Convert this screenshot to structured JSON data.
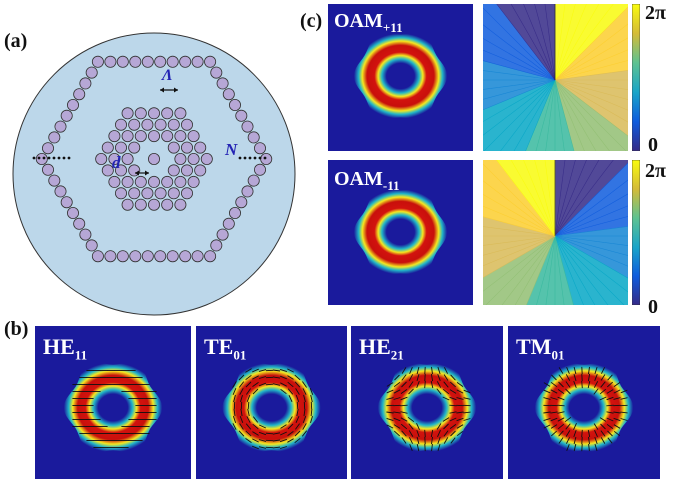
{
  "panels": {
    "a": {
      "label": "(a)",
      "annotations": {
        "pitch": "Λ",
        "diameter": "d",
        "rings": "N"
      },
      "colors": {
        "background": "#bcd7ea",
        "hole": "#b6a7d6",
        "hole_stroke": "#333333",
        "annotation": "#2323b4"
      }
    },
    "b": {
      "label": "(b)",
      "modes": [
        {
          "name": "HE",
          "sub": "11"
        },
        {
          "name": "TE",
          "sub": "01"
        },
        {
          "name": "HE",
          "sub": "21"
        },
        {
          "name": "TM",
          "sub": "01"
        }
      ]
    },
    "c": {
      "label": "(c)",
      "rows": [
        {
          "name": "OAM",
          "sub": "+11"
        },
        {
          "name": "OAM",
          "sub": "-11"
        }
      ],
      "colorbar": {
        "max_label": "2π",
        "min_label": "0"
      }
    }
  }
}
